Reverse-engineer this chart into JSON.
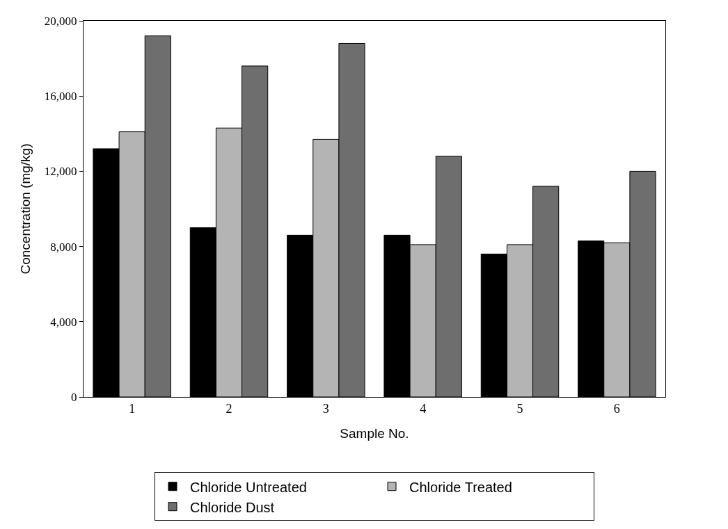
{
  "chart_data": {
    "type": "bar",
    "xlabel": "Sample No.",
    "ylabel": "Concentration (mg/kg)",
    "categories": [
      "1",
      "2",
      "3",
      "4",
      "5",
      "6"
    ],
    "series": [
      {
        "name": "Chloride Untreated",
        "color": "#000000",
        "values": [
          13200,
          9000,
          8600,
          8600,
          7600,
          8300
        ]
      },
      {
        "name": "Chloride Treated",
        "color": "#b4b4b4",
        "values": [
          14100,
          14300,
          13700,
          8100,
          8100,
          8200
        ]
      },
      {
        "name": "Chloride Dust",
        "color": "#6e6e6e",
        "values": [
          19200,
          17600,
          18800,
          12800,
          11200,
          12000
        ]
      }
    ],
    "ylim": [
      0,
      20000
    ],
    "yticks": [
      {
        "value": 0,
        "label": "0"
      },
      {
        "value": 4000,
        "label": "4,000"
      },
      {
        "value": 8000,
        "label": "8,000"
      },
      {
        "value": 12000,
        "label": "12,000"
      },
      {
        "value": 16000,
        "label": "16,000"
      },
      {
        "value": 20000,
        "label": "20,000"
      }
    ],
    "grid": false,
    "legend": "bottom"
  }
}
